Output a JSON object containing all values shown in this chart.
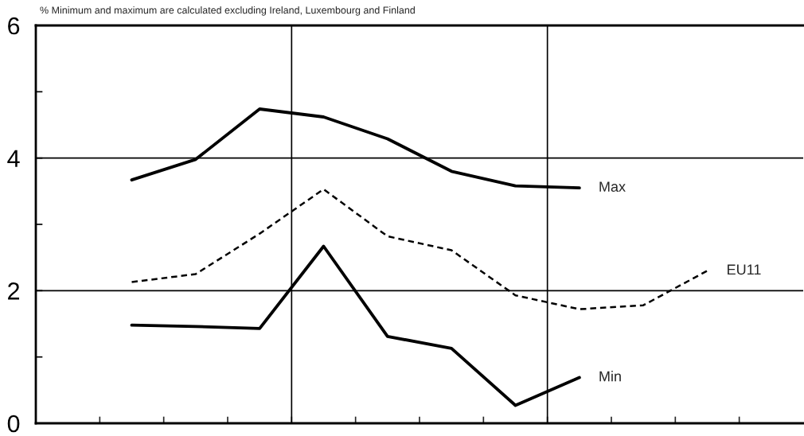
{
  "chart_data": {
    "type": "line",
    "annotations": [
      "% Minimum and maximum are calculated excluding Ireland, Luxembourg and Finland"
    ],
    "categories": [
      null,
      null,
      null,
      null,
      null,
      null,
      null,
      null,
      null,
      null,
      null,
      null
    ],
    "series": [
      {
        "name": "Max",
        "color": "#000000",
        "values": [
          null,
          3.67,
          3.98,
          4.74,
          4.62,
          4.29,
          3.8,
          3.58,
          3.55,
          null,
          null,
          null
        ],
        "line_style": "solid"
      },
      {
        "name": "EU11",
        "color": "#000000",
        "values": [
          null,
          2.13,
          2.25,
          2.86,
          3.53,
          2.82,
          2.61,
          1.93,
          1.72,
          1.78,
          2.3,
          null
        ],
        "line_style": "dashed"
      },
      {
        "name": "Min",
        "color": "#000000",
        "values": [
          null,
          1.48,
          1.46,
          1.43,
          2.67,
          1.31,
          1.13,
          0.27,
          0.69,
          null,
          null,
          null
        ],
        "line_style": "solid"
      }
    ],
    "ylim": [
      0,
      6
    ],
    "yticks": [
      0,
      {
        "value": 1,
        "label": null
      },
      2,
      {
        "value": 3,
        "label": null
      },
      4,
      {
        "value": 5,
        "label": null
      },
      6
    ],
    "grid": "y",
    "marker": "none"
  }
}
